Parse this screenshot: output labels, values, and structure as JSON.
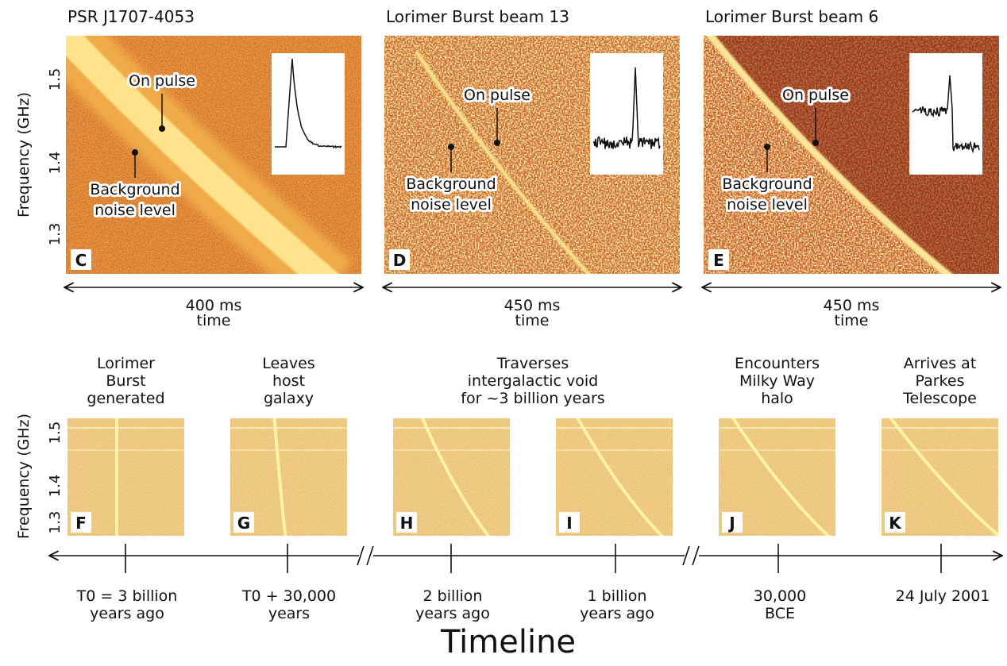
{
  "y_axis_label": "Frequency (GHz)",
  "y_ticks": [
    "1.5",
    "1.4",
    "1.3"
  ],
  "top_panels": [
    {
      "title": "PSR J1707-4053",
      "panel_label": "C",
      "on_pulse": "On pulse",
      "background_lines": [
        "Background",
        "noise level"
      ],
      "duration": "400 ms",
      "axis_label": "time"
    },
    {
      "title": "Lorimer Burst beam 13",
      "panel_label": "D",
      "on_pulse": "On pulse",
      "background_lines": [
        "Background",
        "noise level"
      ],
      "duration": "450 ms",
      "axis_label": "time"
    },
    {
      "title": "Lorimer Burst beam 6",
      "panel_label": "E",
      "on_pulse": "On pulse",
      "background_lines": [
        "Background",
        "noise level"
      ],
      "duration": "450 ms",
      "axis_label": "time"
    }
  ],
  "stages": [
    {
      "caption_lines": [
        "Lorimer",
        "Burst",
        "generated"
      ],
      "panel_labels": [
        "F"
      ]
    },
    {
      "caption_lines": [
        "Leaves",
        "host",
        "galaxy"
      ],
      "panel_labels": [
        "G"
      ]
    },
    {
      "caption_lines": [
        "Traverses",
        "intergalactic void",
        "for ~3 billion years"
      ],
      "panel_labels": [
        "H",
        "I"
      ]
    },
    {
      "caption_lines": [
        "Encounters",
        "Milky Way",
        "halo"
      ],
      "panel_labels": [
        "J"
      ]
    },
    {
      "caption_lines": [
        "Arrives at",
        "Parkes",
        "Telescope"
      ],
      "panel_labels": [
        "K"
      ]
    }
  ],
  "timeline_labels": [
    [
      "T0 = 3 billion",
      "years ago"
    ],
    [
      "T0 + 30,000",
      "years"
    ],
    [
      "2 billion",
      "years ago"
    ],
    [
      "1 billion",
      "years ago"
    ],
    [
      "30,000",
      "BCE"
    ],
    [
      "24 July 2001"
    ]
  ],
  "timeline_title": "Timeline"
}
